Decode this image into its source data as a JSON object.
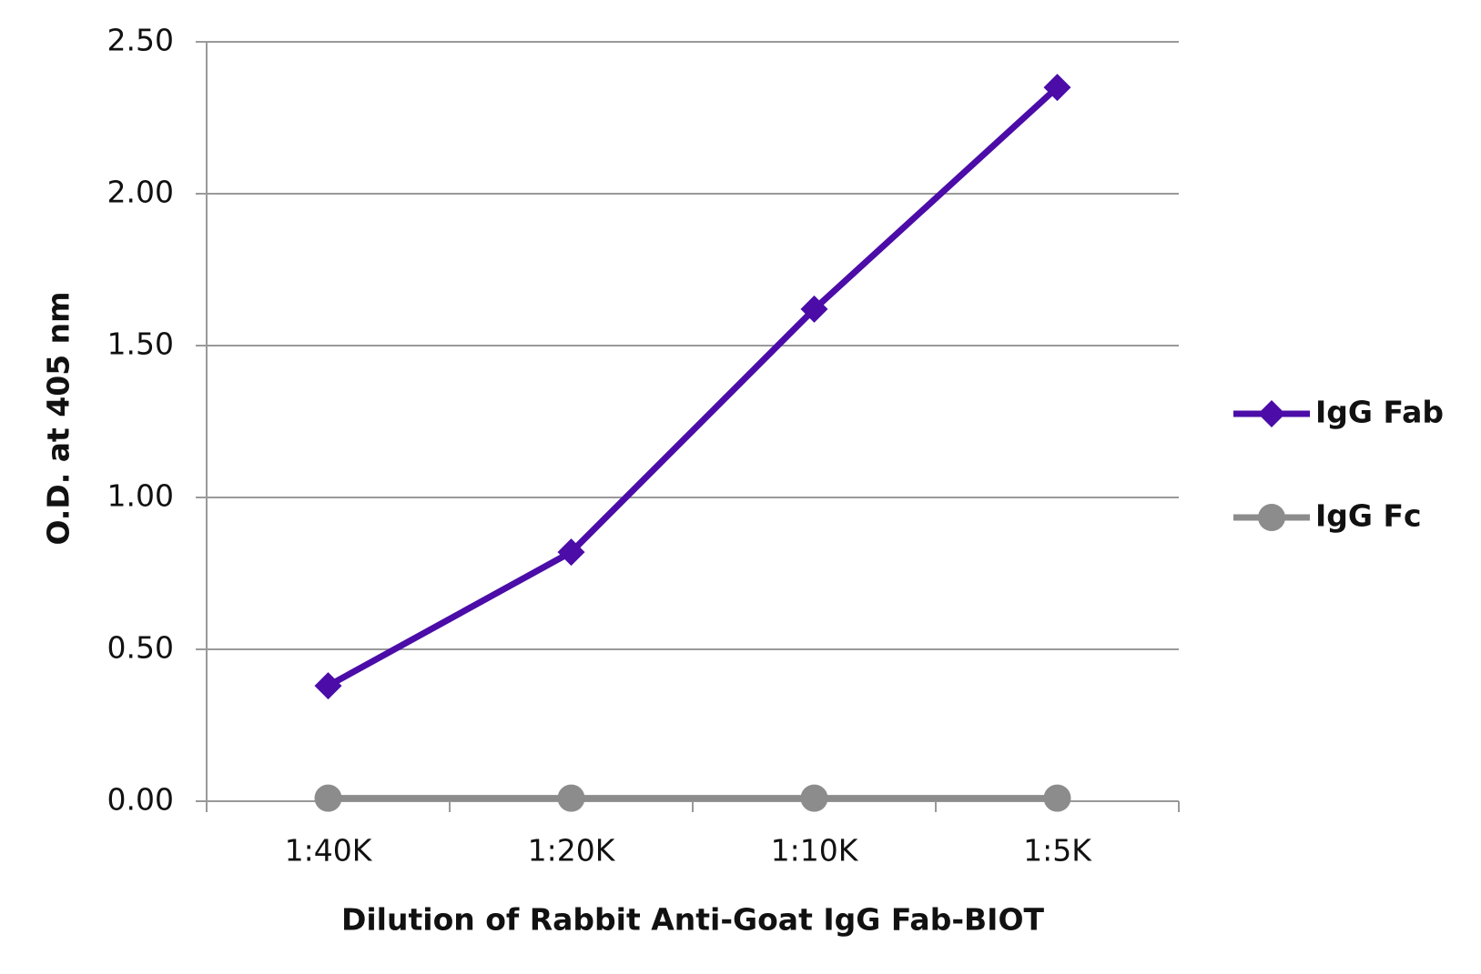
{
  "chart_data": {
    "type": "line",
    "x_label": "Dilution of Rabbit Anti-Goat IgG Fab-BIOT",
    "y_label": "O.D. at 405 nm",
    "categories": [
      "1:40K",
      "1:20K",
      "1:10K",
      "1:5K"
    ],
    "series": [
      {
        "name": "IgG Fab",
        "color": "#4b0ca8",
        "marker": "diamond",
        "values": [
          0.38,
          0.82,
          1.62,
          2.35
        ]
      },
      {
        "name": "IgG Fc",
        "color": "#8c8c8c",
        "marker": "circle",
        "values": [
          0.01,
          0.01,
          0.01,
          0.01
        ]
      }
    ],
    "ylim": [
      0,
      2.5
    ],
    "yticks": [
      {
        "value": 0,
        "label": "0.00"
      },
      {
        "value": 0.5,
        "label": "0.50"
      },
      {
        "value": 1,
        "label": "1.00"
      },
      {
        "value": 1.5,
        "label": "1.50"
      },
      {
        "value": 2,
        "label": "2.00"
      },
      {
        "value": 2.5,
        "label": "2.50"
      }
    ],
    "grid": true,
    "legend": "right"
  }
}
